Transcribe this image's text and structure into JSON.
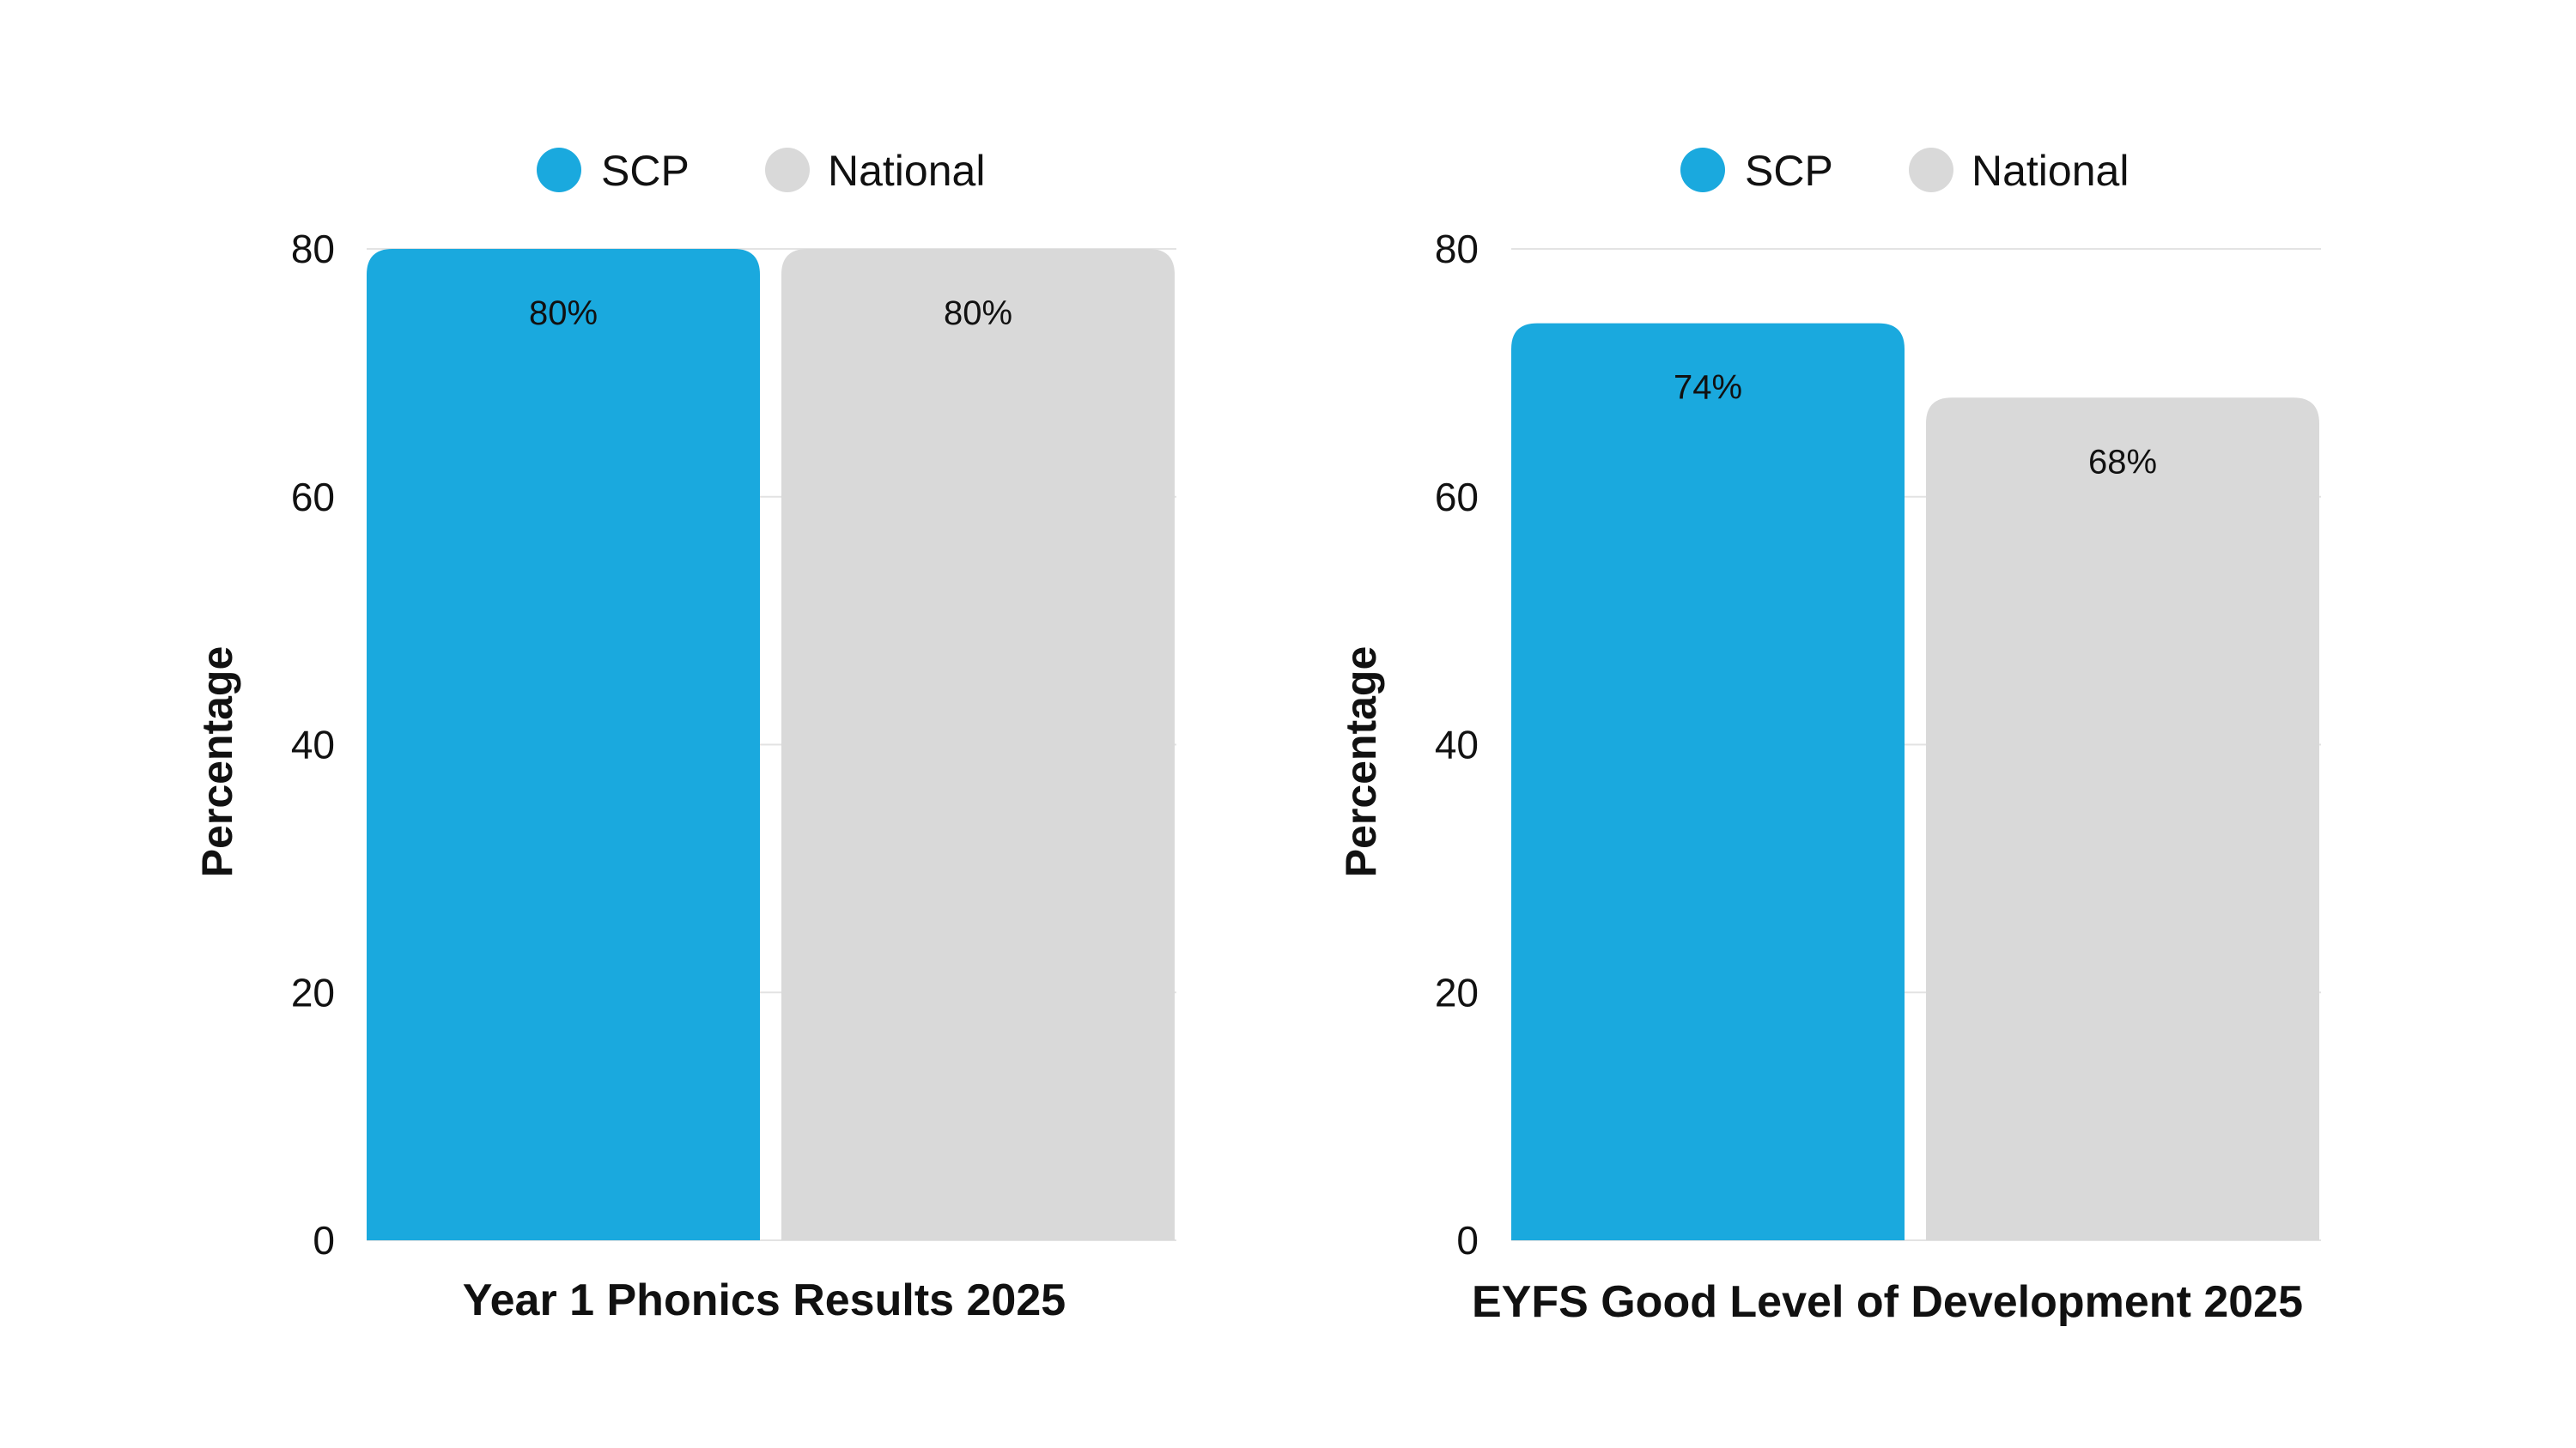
{
  "chart_data": [
    {
      "type": "bar",
      "categories": [
        "SCP",
        "National"
      ],
      "values": [
        80,
        80
      ],
      "data_labels": [
        "80%",
        "80%"
      ],
      "colors": [
        "#1aa9de",
        "#d9d9d9"
      ],
      "legend": [
        "SCP",
        "National"
      ],
      "legend_position": "top",
      "xlabel": "Year 1 Phonics Results 2025",
      "ylabel": "Percentage",
      "ylim": [
        0,
        80
      ],
      "yticks": [
        0,
        20,
        40,
        60,
        80
      ],
      "grid": true
    },
    {
      "type": "bar",
      "categories": [
        "SCP",
        "National"
      ],
      "values": [
        74,
        68
      ],
      "data_labels": [
        "74%",
        "68%"
      ],
      "colors": [
        "#1aa9de",
        "#d9d9d9"
      ],
      "legend": [
        "SCP",
        "National"
      ],
      "legend_position": "top",
      "xlabel": "EYFS Good Level of Development 2025",
      "ylabel": "Percentage",
      "ylim": [
        0,
        80
      ],
      "yticks": [
        0,
        20,
        40,
        60,
        80
      ],
      "grid": true
    }
  ]
}
